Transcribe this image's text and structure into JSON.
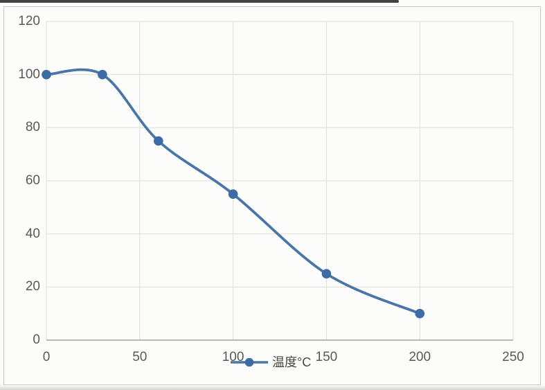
{
  "chart_data": {
    "type": "line",
    "series": [
      {
        "name": "温度°C",
        "x": [
          0,
          30,
          60,
          100,
          150,
          200
        ],
        "y": [
          100,
          100,
          75,
          55,
          25,
          10
        ],
        "marker": "circle",
        "smoothed": true
      }
    ],
    "xlabel": "",
    "ylabel": "",
    "xlim": [
      0,
      250
    ],
    "ylim": [
      0,
      120
    ],
    "x_ticks": [
      0,
      50,
      100,
      150,
      200,
      250
    ],
    "y_ticks": [
      0,
      20,
      40,
      60,
      80,
      100,
      120
    ],
    "grid": "on",
    "legend_position": "bottom-center"
  },
  "legend": {
    "label": "温度°C"
  },
  "colors": {
    "series_line": "#4a75a8",
    "marker_fill": "#3d6ba6",
    "gridline": "#e2e2e1",
    "axis_line": "#a3a3a3",
    "tick_label": "#595959",
    "background": "#fcfcfb",
    "border": "#c7c7c7",
    "top_bar": "#424242"
  }
}
